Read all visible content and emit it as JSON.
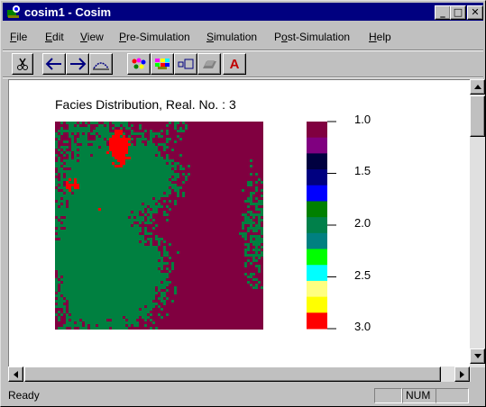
{
  "window": {
    "title": "cosim1 - Cosim",
    "minimize": "_",
    "maximize": "□",
    "close": "✕"
  },
  "menu": [
    {
      "label_pre": "",
      "mnemonic": "F",
      "label_post": "ile"
    },
    {
      "label_pre": "",
      "mnemonic": "E",
      "label_post": "dit"
    },
    {
      "label_pre": "",
      "mnemonic": "V",
      "label_post": "iew"
    },
    {
      "label_pre": "",
      "mnemonic": "P",
      "label_post": "re-Simulation"
    },
    {
      "label_pre": "",
      "mnemonic": "S",
      "label_post": "imulation"
    },
    {
      "label_pre": "P",
      "mnemonic": "o",
      "label_post": "st-Simulation"
    },
    {
      "label_pre": "",
      "mnemonic": "H",
      "label_post": "elp"
    }
  ],
  "toolbar": {
    "buttons": [
      "cut-icon",
      "arrow-left-icon",
      "arrow-right-icon",
      "variogram-icon",
      "palette-icon",
      "color-grid-icon",
      "rectangles-icon",
      "layers-icon",
      "text-icon"
    ],
    "text_button_label": "A"
  },
  "plot": {
    "title": "Facies Distribution, Real. No. : 3",
    "legend_labels": [
      "1.0",
      "1.5",
      "2.0",
      "2.5",
      "3.0"
    ],
    "legend_colors": [
      "#800040",
      "#800080",
      "#000040",
      "#000080",
      "#0000ff",
      "#008000",
      "#00804a",
      "#008080",
      "#00ff00",
      "#00ffff",
      "#ffff80",
      "#ffff00",
      "#ff0000"
    ],
    "facies_colors": {
      "background": "#800040",
      "mid": "#008040",
      "high": "#ff0000"
    }
  },
  "status": {
    "text": "Ready",
    "panes": [
      "",
      "NUM",
      ""
    ]
  }
}
